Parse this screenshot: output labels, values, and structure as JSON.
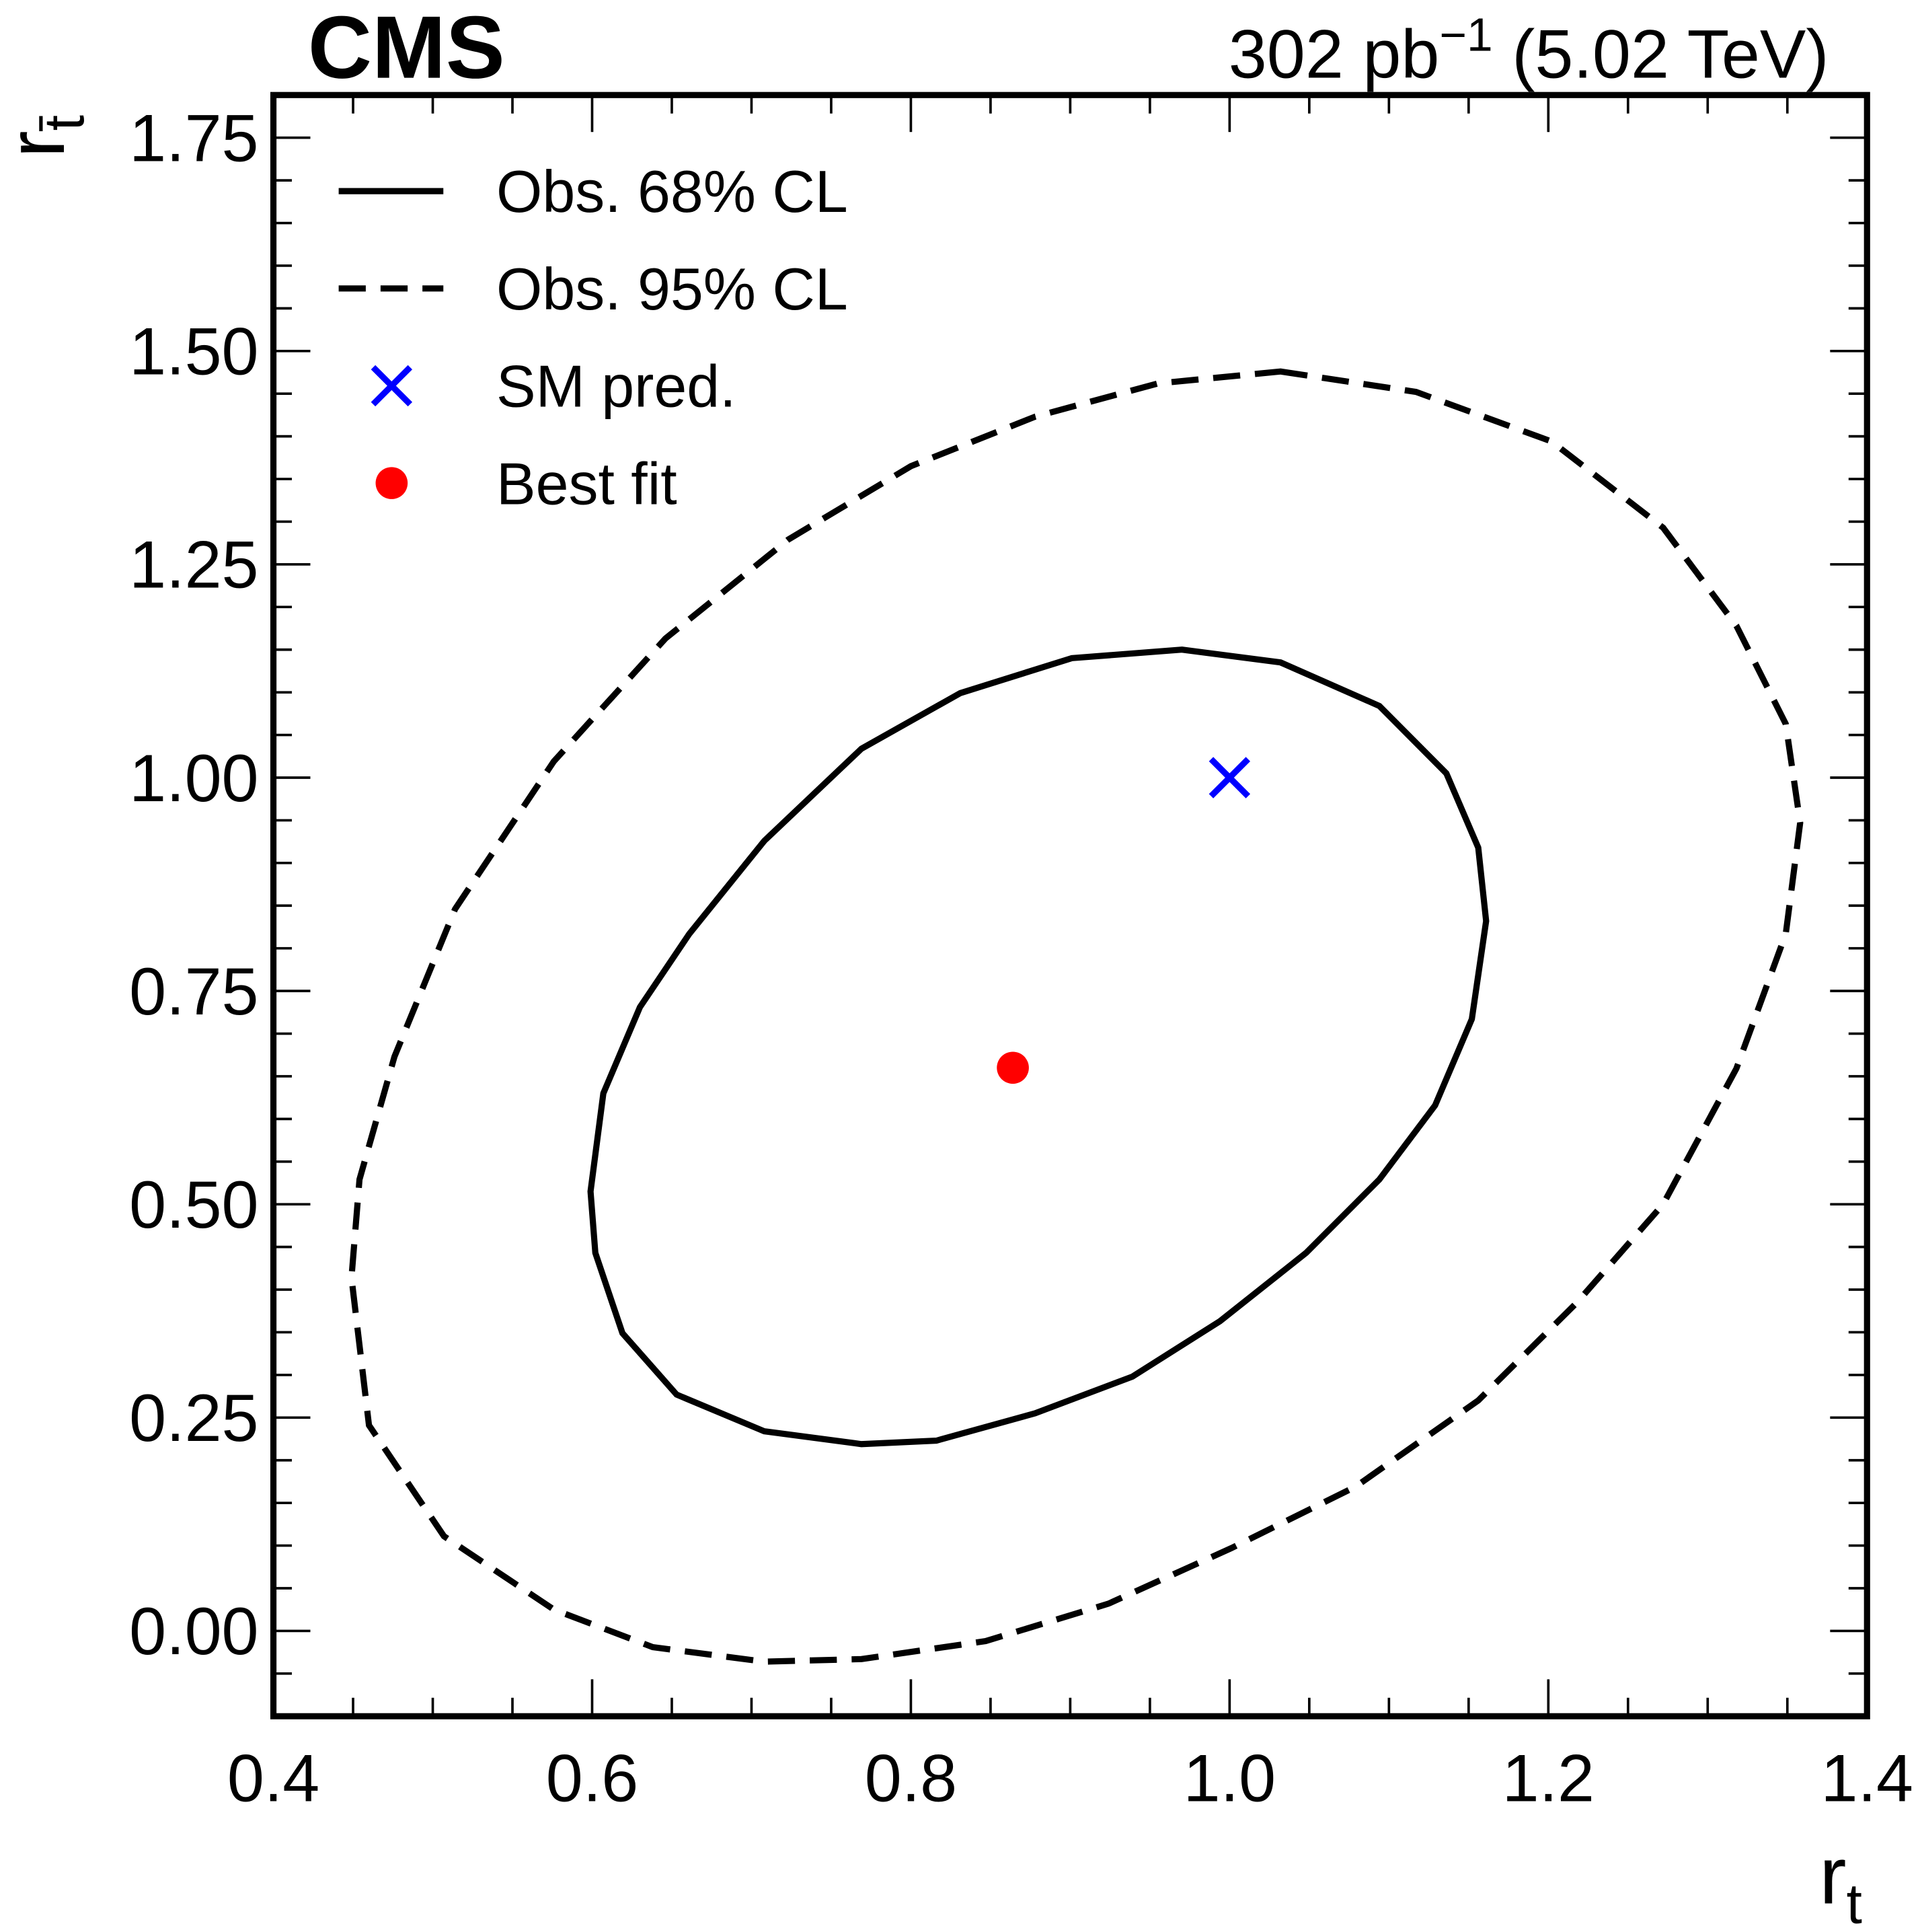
{
  "chart_data": {
    "type": "contour",
    "experiment": "CMS",
    "lumi": {
      "text": "302 pb",
      "sup": "−1",
      "rest": " (5.02 TeV)"
    },
    "xlabel": {
      "main": "r",
      "sub": "t"
    },
    "ylabel": {
      "main": "r",
      "sub": "t̄"
    },
    "xlim": [
      0.4,
      1.4
    ],
    "ylim": [
      -0.1,
      1.8
    ],
    "xticks": [
      0.4,
      0.6,
      0.8,
      {
        "value": 1.0,
        "label": "1.0"
      },
      1.2,
      1.4
    ],
    "yticks": [
      {
        "value": 0,
        "label": "0.00"
      },
      {
        "value": 0.25,
        "label": "0.25"
      },
      {
        "value": 0.5,
        "label": "0.50"
      },
      {
        "value": 0.75,
        "label": "0.75"
      },
      {
        "value": 1.0,
        "label": "1.00"
      },
      {
        "value": 1.25,
        "label": "1.25"
      },
      {
        "value": 1.5,
        "label": "1.50"
      },
      {
        "value": 1.75,
        "label": "1.75"
      }
    ],
    "legend": "upper left",
    "series": [
      {
        "name": "Obs. 68% CL",
        "color": "#000000",
        "style": "solid",
        "x": [
          0.97,
          1.032,
          1.094,
          1.136,
          1.156,
          1.161,
          1.152,
          1.129,
          1.094,
          1.048,
          0.994,
          0.939,
          0.878,
          0.816,
          0.769,
          0.708,
          0.653,
          0.619,
          0.602,
          0.599,
          0.607,
          0.63,
          0.661,
          0.708,
          0.769,
          0.831,
          0.901
        ],
        "y": [
          1.15,
          1.135,
          1.084,
          1.005,
          0.918,
          0.832,
          0.717,
          0.616,
          0.529,
          0.443,
          0.363,
          0.298,
          0.255,
          0.223,
          0.219,
          0.234,
          0.277,
          0.349,
          0.443,
          0.515,
          0.63,
          0.731,
          0.817,
          0.926,
          1.034,
          1.099,
          1.14
        ]
      },
      {
        "name": "Obs. 95% CL",
        "color": "#000000",
        "style": "dashed",
        "x": [
          1.032,
          1.117,
          1.202,
          1.272,
          1.318,
          1.349,
          1.358,
          1.349,
          1.318,
          1.272,
          1.218,
          1.156,
          1.079,
          1.001,
          0.924,
          0.847,
          0.769,
          0.708,
          0.638,
          0.576,
          0.507,
          0.46,
          0.449,
          0.454,
          0.476,
          0.514,
          0.576,
          0.646,
          0.723,
          0.8,
          0.878,
          0.955
        ],
        "y": [
          1.476,
          1.452,
          1.394,
          1.293,
          1.178,
          1.063,
          0.947,
          0.817,
          0.659,
          0.5,
          0.385,
          0.27,
          0.169,
          0.097,
          0.032,
          -0.012,
          -0.033,
          -0.036,
          -0.019,
          0.025,
          0.111,
          0.241,
          0.414,
          0.529,
          0.673,
          0.846,
          1.019,
          1.163,
          1.279,
          1.365,
          1.423,
          1.462
        ]
      },
      {
        "name": "SM pred.",
        "color": "#0000ff",
        "marker": "x",
        "x": [
          1.0
        ],
        "y": [
          1.0
        ]
      },
      {
        "name": "Best fit",
        "color": "#ff0000",
        "marker": "circle",
        "x": [
          0.864
        ],
        "y": [
          0.66
        ]
      }
    ]
  }
}
